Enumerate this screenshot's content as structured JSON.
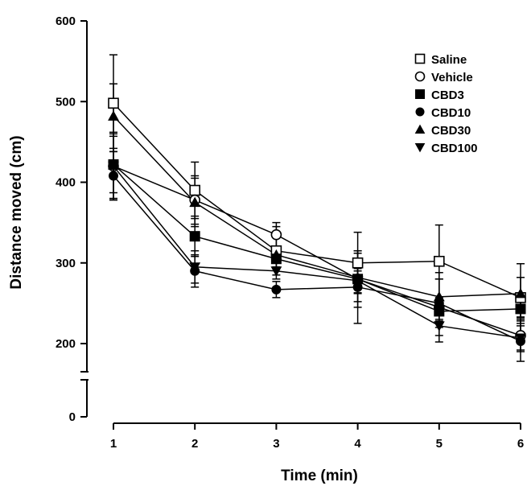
{
  "chart_data": {
    "type": "line",
    "title": "",
    "xlabel": "Time (min)",
    "ylabel": "Distance moved (cm)",
    "x": [
      1,
      2,
      3,
      4,
      5,
      6
    ],
    "xlim": [
      1,
      6
    ],
    "ylim": [
      0,
      600
    ],
    "y_axis_break": [
      0,
      150
    ],
    "yticks": [
      0,
      200,
      300,
      400,
      500,
      600
    ],
    "grid": false,
    "legend_position": "top-right",
    "series": [
      {
        "name": "Saline",
        "marker": "open-square",
        "values": [
          498,
          390,
          315,
          300,
          302,
          257
        ],
        "error": [
          60,
          35,
          30,
          38,
          45,
          25
        ]
      },
      {
        "name": "Vehicle",
        "marker": "open-circle",
        "values": [
          420,
          378,
          335,
          280,
          245,
          210
        ],
        "error": [
          42,
          30,
          15,
          35,
          35,
          20
        ]
      },
      {
        "name": "CBD3",
        "marker": "filled-square",
        "values": [
          422,
          333,
          305,
          280,
          240,
          243
        ],
        "error": [
          35,
          25,
          10,
          10,
          10,
          10
        ]
      },
      {
        "name": "CBD10",
        "marker": "filled-circle",
        "values": [
          408,
          290,
          267,
          270,
          250,
          203
        ],
        "error": [
          30,
          20,
          10,
          45,
          30,
          25
        ]
      },
      {
        "name": "CBD30",
        "marker": "filled-triangle-up",
        "values": [
          482,
          375,
          310,
          282,
          258,
          262
        ],
        "error": [
          40,
          30,
          10,
          30,
          30,
          37
        ]
      },
      {
        "name": "CBD100",
        "marker": "filled-triangle-down",
        "values": [
          420,
          295,
          290,
          278,
          222,
          207
        ],
        "error": [
          40,
          20,
          10,
          15,
          20,
          15
        ]
      }
    ]
  }
}
